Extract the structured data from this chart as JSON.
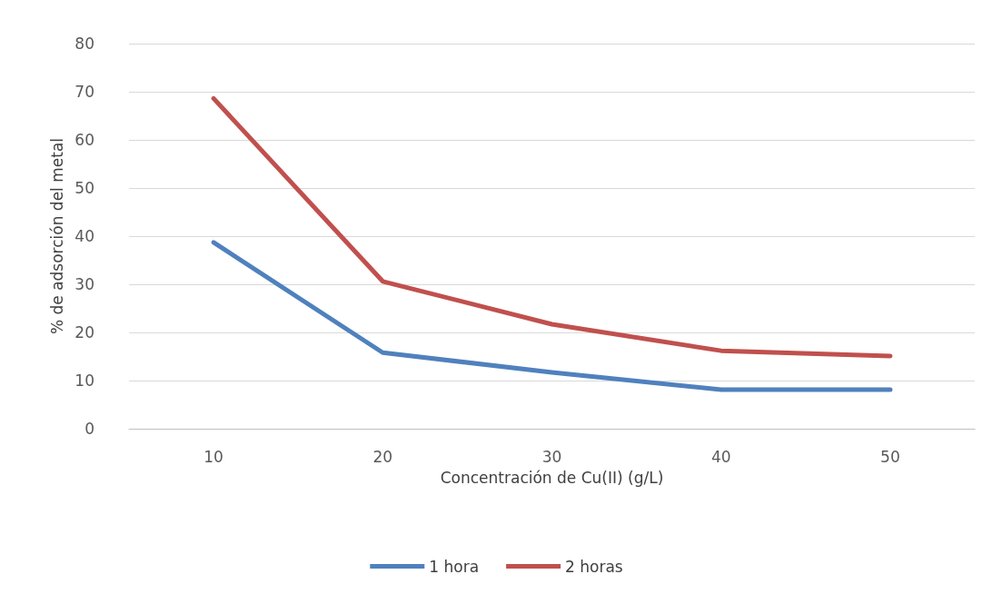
{
  "chart_data": {
    "type": "line",
    "xlabel": "Concentración de Cu(II) (g/L)",
    "ylabel": "% de adsorción del metal",
    "categories": [
      "10",
      "20",
      "30",
      "40",
      "50"
    ],
    "series": [
      {
        "name": "1 hora",
        "color": "#4f81bd",
        "values": [
          38.7,
          15.8,
          11.7,
          8.1,
          8.1
        ]
      },
      {
        "name": "2 horas",
        "color": "#c0504d",
        "values": [
          68.6,
          30.6,
          21.7,
          16.2,
          15.1
        ]
      }
    ],
    "ylim": [
      0,
      80
    ],
    "yticks": [
      0,
      10,
      20,
      30,
      40,
      50,
      60,
      70,
      80
    ],
    "grid": "y",
    "legend": "bottom",
    "marker": "none",
    "line_style": "solid"
  }
}
